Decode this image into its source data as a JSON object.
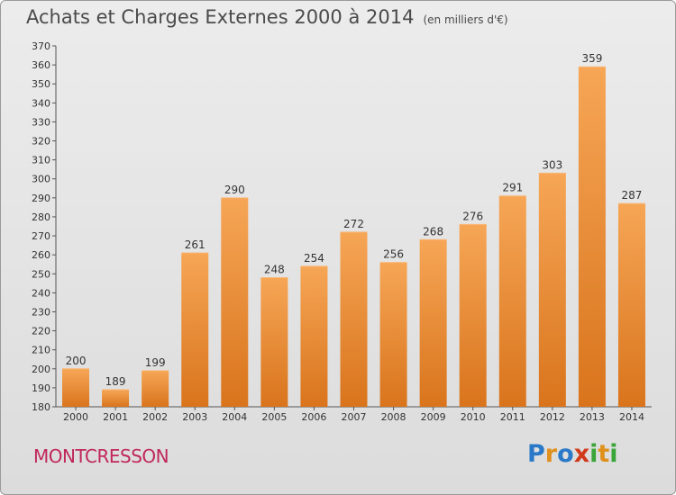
{
  "header": {
    "title": "Achats et Charges Externes 2000 à 2014",
    "subtitle": "(en milliers d'€)"
  },
  "footer": {
    "place": "MONTCRESSON",
    "logo_letters": [
      "P",
      "r",
      "o",
      "x",
      "i",
      "t",
      "i"
    ],
    "logo_colors": [
      "#2a79c9",
      "#e0911d",
      "#2a79c9",
      "#d23a1c",
      "#3aa538",
      "#e0911d",
      "#3aa538"
    ]
  },
  "chart_data": {
    "type": "bar",
    "title": "Achats et Charges Externes 2000 à 2014",
    "subtitle": "(en milliers d'€)",
    "categories": [
      "2000",
      "2001",
      "2002",
      "2003",
      "2004",
      "2005",
      "2006",
      "2007",
      "2008",
      "2009",
      "2010",
      "2011",
      "2012",
      "2013",
      "2014"
    ],
    "values": [
      200,
      189,
      199,
      261,
      290,
      248,
      254,
      272,
      256,
      268,
      276,
      291,
      303,
      359,
      287
    ],
    "ylim": [
      180,
      370
    ],
    "ytick_step": 10,
    "grid": false,
    "bar_color": "#f0913a"
  }
}
